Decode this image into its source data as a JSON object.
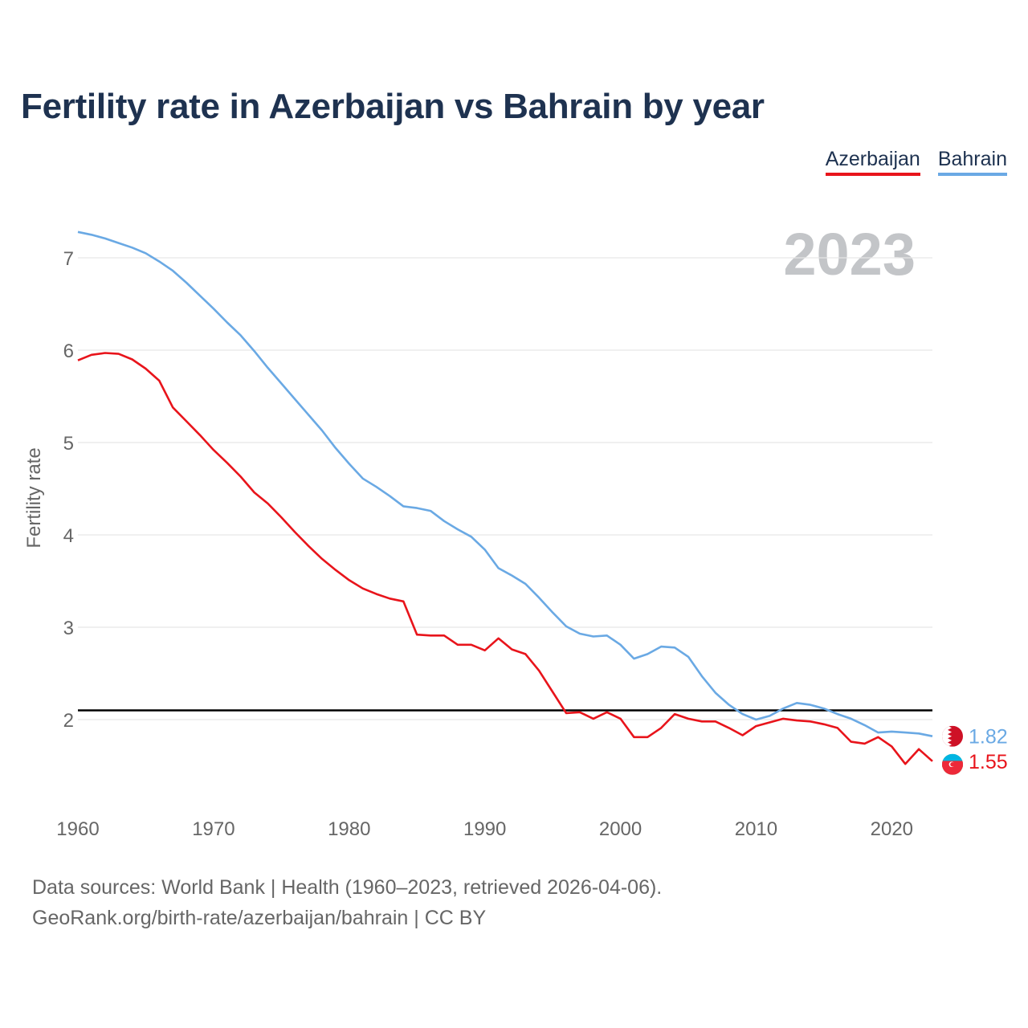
{
  "title": "Fertility rate in Azerbaijan vs Bahrain by year",
  "legend": {
    "azerbaijan": "Azerbaijan",
    "bahrain": "Bahrain"
  },
  "footer": {
    "sources": "Data sources: World Bank | Health (1960–2023, retrieved 2026-04-06).",
    "credit": "GeoRank.org/birth-rate/azerbaijan/bahrain | CC BY"
  },
  "chart_data": {
    "type": "line",
    "title": "Fertility rate in Azerbaijan vs Bahrain by year",
    "xlabel": "",
    "ylabel": "Fertility rate",
    "year_label": "2023",
    "xlim": [
      1960,
      2023
    ],
    "ylim": [
      1.1,
      7.45
    ],
    "x_ticks": [
      1960,
      1970,
      1980,
      1990,
      2000,
      2010,
      2020
    ],
    "y_ticks": [
      2,
      3,
      4,
      5,
      6,
      7
    ],
    "grid": true,
    "reference_line": 2.1,
    "colors": {
      "azerbaijan": "#e8141b",
      "bahrain": "#6aa9e4",
      "reference": "#000000",
      "grid": "#e6e6e6",
      "year_watermark": "#c3c5c8"
    },
    "x": [
      1960,
      1961,
      1962,
      1963,
      1964,
      1965,
      1966,
      1967,
      1968,
      1969,
      1970,
      1971,
      1972,
      1973,
      1974,
      1975,
      1976,
      1977,
      1978,
      1979,
      1980,
      1981,
      1982,
      1983,
      1984,
      1985,
      1986,
      1987,
      1988,
      1989,
      1990,
      1991,
      1992,
      1993,
      1994,
      1995,
      1996,
      1997,
      1998,
      1999,
      2000,
      2001,
      2002,
      2003,
      2004,
      2005,
      2006,
      2007,
      2008,
      2009,
      2010,
      2011,
      2012,
      2013,
      2014,
      2015,
      2016,
      2017,
      2018,
      2019,
      2020,
      2021,
      2022,
      2023
    ],
    "series": [
      {
        "name": "Azerbaijan",
        "end_label": "1.55",
        "values": [
          5.89,
          5.95,
          5.97,
          5.96,
          5.9,
          5.8,
          5.67,
          5.38,
          5.23,
          5.08,
          4.92,
          4.78,
          4.63,
          4.46,
          4.34,
          4.19,
          4.03,
          3.88,
          3.74,
          3.62,
          3.51,
          3.42,
          3.36,
          3.31,
          3.28,
          2.92,
          2.91,
          2.91,
          2.81,
          2.81,
          2.75,
          2.88,
          2.76,
          2.71,
          2.53,
          2.3,
          2.07,
          2.08,
          2.01,
          2.08,
          2.01,
          1.81,
          1.81,
          1.91,
          2.06,
          2.01,
          1.98,
          1.98,
          1.91,
          1.83,
          1.93,
          1.97,
          2.01,
          1.99,
          1.98,
          1.95,
          1.91,
          1.76,
          1.74,
          1.81,
          1.71,
          1.52,
          1.68,
          1.55
        ]
      },
      {
        "name": "Bahrain",
        "end_label": "1.82",
        "values": [
          7.28,
          7.25,
          7.21,
          7.16,
          7.11,
          7.05,
          6.96,
          6.86,
          6.73,
          6.59,
          6.45,
          6.3,
          6.16,
          5.99,
          5.81,
          5.64,
          5.47,
          5.3,
          5.13,
          4.94,
          4.77,
          4.61,
          4.52,
          4.42,
          4.31,
          4.29,
          4.26,
          4.15,
          4.06,
          3.98,
          3.84,
          3.64,
          3.56,
          3.47,
          3.32,
          3.16,
          3.01,
          2.93,
          2.9,
          2.91,
          2.81,
          2.66,
          2.71,
          2.79,
          2.78,
          2.68,
          2.47,
          2.29,
          2.16,
          2.06,
          2.0,
          2.04,
          2.12,
          2.18,
          2.16,
          2.12,
          2.06,
          2.01,
          1.94,
          1.86,
          1.87,
          1.86,
          1.85,
          1.82
        ]
      }
    ]
  }
}
